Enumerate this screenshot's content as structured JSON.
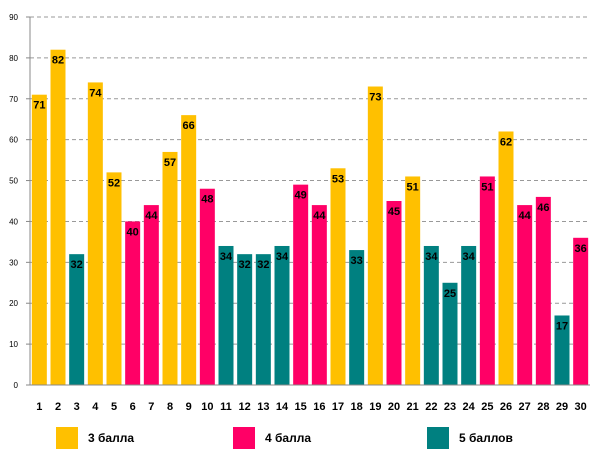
{
  "chart_data": {
    "type": "bar",
    "categories": [
      "1",
      "2",
      "3",
      "4",
      "5",
      "6",
      "7",
      "8",
      "9",
      "10",
      "11",
      "12",
      "13",
      "14",
      "15",
      "16",
      "17",
      "18",
      "19",
      "20",
      "21",
      "22",
      "23",
      "24",
      "25",
      "26",
      "27",
      "28",
      "29",
      "30"
    ],
    "values": [
      71,
      82,
      32,
      74,
      52,
      40,
      44,
      57,
      66,
      48,
      34,
      32,
      32,
      34,
      49,
      44,
      53,
      33,
      73,
      45,
      51,
      34,
      25,
      34,
      51,
      62,
      44,
      46,
      17,
      36
    ],
    "groups": [
      0,
      0,
      2,
      0,
      0,
      1,
      1,
      0,
      0,
      1,
      2,
      2,
      2,
      2,
      1,
      1,
      0,
      2,
      0,
      1,
      0,
      2,
      2,
      2,
      1,
      0,
      1,
      1,
      2,
      1
    ],
    "series": [
      {
        "name": "3 балла",
        "color": "#FFC000"
      },
      {
        "name": "4 балла",
        "color": "#FF0066"
      },
      {
        "name": "5 баллов",
        "color": "#008080"
      }
    ],
    "ylim": [
      0,
      90
    ],
    "yticks": [
      0,
      10,
      20,
      30,
      40,
      50,
      60,
      70,
      80,
      90
    ],
    "grid": true,
    "legend_position": "bottom"
  }
}
